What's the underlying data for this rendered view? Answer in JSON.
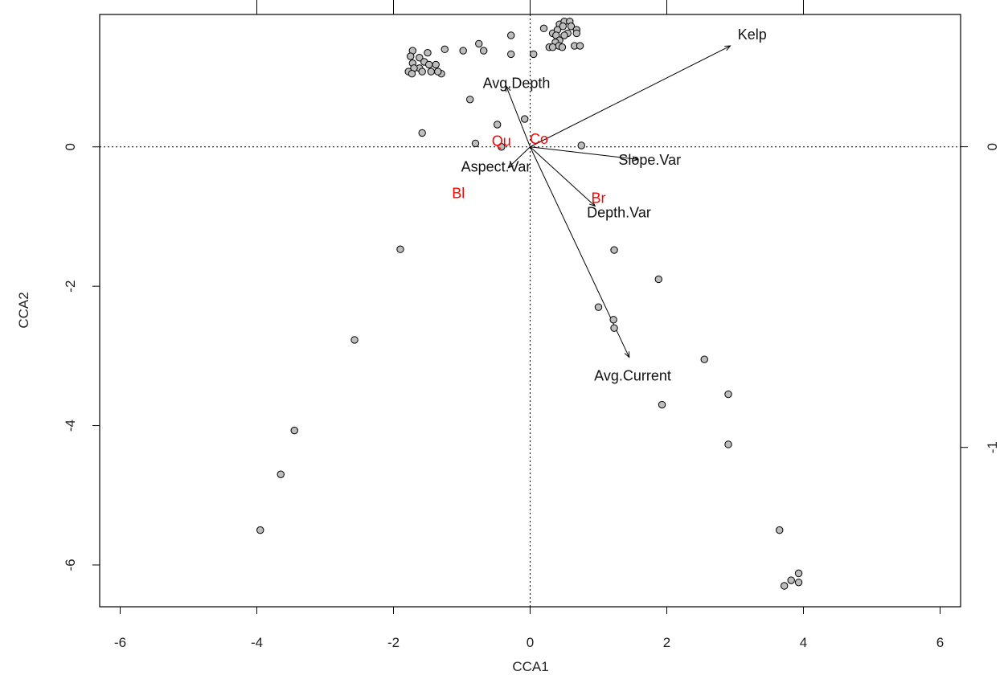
{
  "chart_data": {
    "type": "scatter",
    "subtype": "cca-biplot",
    "xlabel": "CCA1",
    "ylabel": "CCA2",
    "xlim": [
      -6.3,
      6.3
    ],
    "ylim": [
      -6.6,
      1.9
    ],
    "right_axis_lim": [
      -1.53,
      0.44
    ],
    "x_ticks": [
      -6,
      -4,
      -2,
      0,
      2,
      4,
      6
    ],
    "y_ticks": [
      -6,
      -4,
      -2,
      0
    ],
    "right_ticks": [
      -1,
      0
    ],
    "top_ticks": [
      -4,
      -2,
      0,
      2,
      4
    ],
    "reference_lines": {
      "x": 0,
      "y": 0,
      "style": "dotted"
    },
    "grid": false,
    "point_fill": "#bdbdbd",
    "arrow_color": "#000000",
    "species_color": "#ff0000",
    "sites": [
      [
        0.2,
        1.7
      ],
      [
        0.33,
        1.63
      ],
      [
        0.43,
        1.76
      ],
      [
        0.5,
        1.8
      ],
      [
        0.58,
        1.8
      ],
      [
        0.4,
        1.68
      ],
      [
        0.48,
        1.73
      ],
      [
        0.6,
        1.73
      ],
      [
        0.55,
        1.63
      ],
      [
        0.68,
        1.68
      ],
      [
        0.68,
        1.63
      ],
      [
        0.38,
        1.6
      ],
      [
        0.5,
        1.6
      ],
      [
        0.43,
        1.53
      ],
      [
        0.37,
        1.5
      ],
      [
        0.42,
        1.45
      ],
      [
        0.28,
        1.43
      ],
      [
        0.33,
        1.43
      ],
      [
        0.47,
        1.43
      ],
      [
        0.65,
        1.45
      ],
      [
        0.73,
        1.45
      ],
      [
        -0.28,
        1.6
      ],
      [
        -0.75,
        1.48
      ],
      [
        -0.68,
        1.38
      ],
      [
        -0.28,
        1.33
      ],
      [
        0.05,
        1.33
      ],
      [
        -1.25,
        1.4
      ],
      [
        -0.98,
        1.38
      ],
      [
        -1.5,
        1.35
      ],
      [
        -1.72,
        1.38
      ],
      [
        -1.62,
        1.28
      ],
      [
        -1.75,
        1.3
      ],
      [
        -1.72,
        1.2
      ],
      [
        -1.55,
        1.22
      ],
      [
        -1.48,
        1.18
      ],
      [
        -1.38,
        1.18
      ],
      [
        -1.62,
        1.13
      ],
      [
        -1.7,
        1.13
      ],
      [
        -1.78,
        1.08
      ],
      [
        -1.73,
        1.05
      ],
      [
        -1.58,
        1.08
      ],
      [
        -1.45,
        1.08
      ],
      [
        -1.3,
        1.05
      ],
      [
        -1.35,
        1.08
      ],
      [
        -0.88,
        0.68
      ],
      [
        -0.08,
        0.4
      ],
      [
        -0.48,
        0.32
      ],
      [
        -1.58,
        0.2
      ],
      [
        -0.8,
        0.05
      ],
      [
        -0.42,
        0.0
      ],
      [
        0.75,
        0.02
      ],
      [
        -1.9,
        -1.47
      ],
      [
        1.23,
        -1.48
      ],
      [
        1.88,
        -1.9
      ],
      [
        1.0,
        -2.3
      ],
      [
        1.22,
        -2.48
      ],
      [
        1.23,
        -2.6
      ],
      [
        2.55,
        -3.05
      ],
      [
        2.9,
        -3.55
      ],
      [
        1.93,
        -3.7
      ],
      [
        2.9,
        -4.27
      ],
      [
        -2.57,
        -2.77
      ],
      [
        -3.45,
        -4.07
      ],
      [
        -3.65,
        -4.7
      ],
      [
        -3.95,
        -5.5
      ],
      [
        3.65,
        -5.5
      ],
      [
        3.93,
        -6.12
      ],
      [
        3.82,
        -6.22
      ],
      [
        3.93,
        -6.25
      ],
      [
        3.72,
        -6.3
      ]
    ],
    "vectors": [
      {
        "label": "Kelp",
        "x": 2.93,
        "y": 1.45
      },
      {
        "label": "Avg.Depth",
        "x": -0.35,
        "y": 0.87
      },
      {
        "label": "Slope.Var",
        "x": 1.58,
        "y": -0.18
      },
      {
        "label": "Aspect.Var",
        "x": -0.32,
        "y": -0.3
      },
      {
        "label": "Depth.Var",
        "x": 0.95,
        "y": -0.85
      },
      {
        "label": "Avg.Current",
        "x": 1.45,
        "y": -3.02
      }
    ],
    "vector_label_positions": [
      {
        "label": "Kelp",
        "x": 3.25,
        "y": 1.6
      },
      {
        "label": "Avg.Depth",
        "x": -0.2,
        "y": 0.9
      },
      {
        "label": "Slope.Var",
        "x": 1.75,
        "y": -0.2
      },
      {
        "label": "Aspect.Var",
        "x": -0.5,
        "y": -0.3
      },
      {
        "label": "Depth.Var",
        "x": 1.3,
        "y": -0.96
      },
      {
        "label": "Avg.Current",
        "x": 1.5,
        "y": -3.3
      }
    ],
    "species": [
      {
        "label": "Co",
        "x": 0.13,
        "y": 0.1
      },
      {
        "label": "Qu",
        "x": -0.42,
        "y": 0.07
      },
      {
        "label": "Br",
        "x": 1.0,
        "y": -0.75
      },
      {
        "label": "Bl",
        "x": -1.05,
        "y": -0.68
      }
    ]
  }
}
